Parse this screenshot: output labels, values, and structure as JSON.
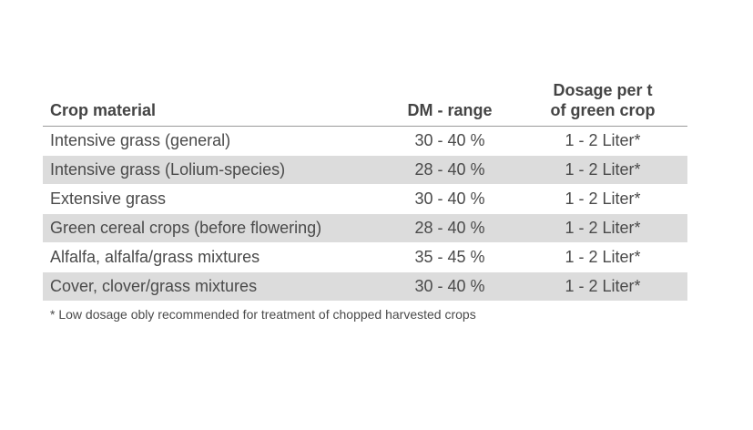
{
  "table": {
    "headers": {
      "crop": "Crop material",
      "dm": "DM - range",
      "dosage_line1": "Dosage per t",
      "dosage_line2": "of green crop"
    },
    "rows": [
      {
        "crop": "Intensive grass (general)",
        "dm": "30 - 40 %",
        "dosage": "1 - 2 Liter*"
      },
      {
        "crop": "Intensive grass (Lolium-species)",
        "dm": "28 - 40 %",
        "dosage": "1 - 2 Liter*"
      },
      {
        "crop": "Extensive grass",
        "dm": "30 - 40 %",
        "dosage": "1 - 2 Liter*"
      },
      {
        "crop": "Green cereal crops (before flowering)",
        "dm": "28 - 40 %",
        "dosage": "1 - 2 Liter*"
      },
      {
        "crop": "Alfalfa, alfalfa/grass mixtures",
        "dm": "35 - 45 %",
        "dosage": "1 - 2 Liter*"
      },
      {
        "crop": "Cover, clover/grass mixtures",
        "dm": "30 - 40 %",
        "dosage": "1 - 2 Liter*"
      }
    ],
    "shade_color": "#dcdcdc"
  },
  "footnote": "* Low dosage obly recommended for treatment of chopped harvested crops"
}
